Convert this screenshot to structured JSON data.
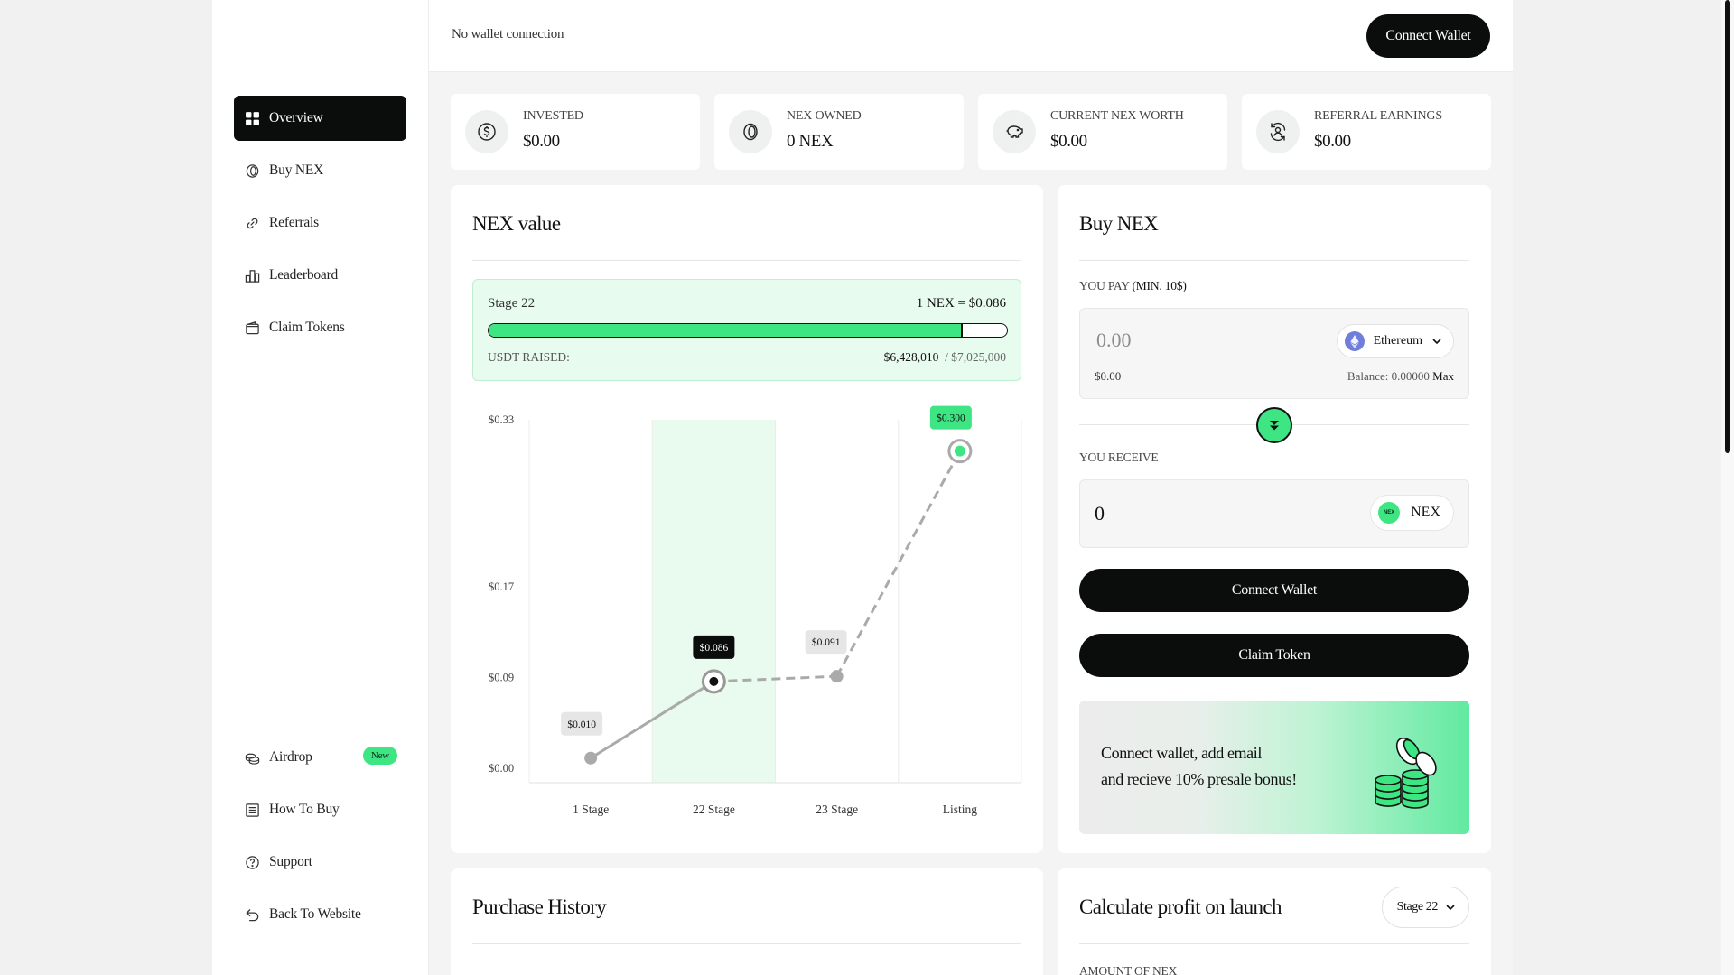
{
  "sidebar": {
    "top_items": [
      {
        "label": "Overview",
        "icon": "grid-icon"
      },
      {
        "label": "Buy NEX",
        "icon": "coin-icon"
      },
      {
        "label": "Referrals",
        "icon": "link-icon"
      },
      {
        "label": "Leaderboard",
        "icon": "podium-icon"
      },
      {
        "label": "Claim Tokens",
        "icon": "wallet-icon"
      }
    ],
    "bottom_items": [
      {
        "label": "Airdrop",
        "icon": "coins-stack-icon",
        "badge": "New"
      },
      {
        "label": "How To Buy",
        "icon": "document-icon"
      },
      {
        "label": "Support",
        "icon": "help-circle-icon"
      },
      {
        "label": "Back To Website",
        "icon": "return-arrow-icon"
      }
    ]
  },
  "topbar": {
    "status": "No wallet connection",
    "connect_label": "Connect Wallet"
  },
  "stats": [
    {
      "label": "INVESTED",
      "value": "$0.00",
      "icon": "dollar-circle-icon"
    },
    {
      "label": "NEX OWNED",
      "value": "0 NEX",
      "icon": "coin-icon"
    },
    {
      "label": "CURRENT NEX WORTH",
      "value": "$0.00",
      "icon": "piggy-bank-icon"
    },
    {
      "label": "REFERRAL EARNINGS",
      "value": "$0.00",
      "icon": "referral-cycle-icon"
    }
  ],
  "nex_value": {
    "title": "NEX value",
    "stage_label": "Stage 22",
    "rate": "1 NEX = $0.086",
    "progress_fraction": 0.915,
    "raised_label": "USDT RAISED:",
    "raised_value": "$6,428,010",
    "raised_target": "/ $7,025,000"
  },
  "chart_data": {
    "type": "line",
    "categories": [
      "1 Stage",
      "22 Stage",
      "23 Stage",
      "Listing"
    ],
    "values": [
      0.01,
      0.086,
      0.091,
      0.3
    ],
    "data_labels": [
      "$0.010",
      "$0.086",
      "$0.091",
      "$0.300"
    ],
    "y_tick_labels": [
      "$0.33",
      "$0.17",
      "$0.09",
      "$0.00"
    ],
    "y_tick_values": [
      0.33,
      0.17,
      0.09,
      0.0
    ],
    "ylim": [
      0,
      0.33
    ],
    "current_index": 1,
    "grid": "vertical",
    "colors": {
      "past": "#aaaaaa",
      "current": "#111111",
      "future": "#aaaaaa",
      "listing": "#3ee583",
      "highlight": "#e9fbef"
    }
  },
  "buy": {
    "title": "Buy NEX",
    "pay_label": "YOU PAY",
    "pay_min": "(MIN. 10$)",
    "pay_placeholder": "0.00",
    "pay_usd": "$0.00",
    "balance": "Balance: 0.00000",
    "max_label": "Max",
    "token": "Ethereum",
    "receive_label": "YOU RECEIVE",
    "receive_amount": "0",
    "receive_token": "NEX",
    "connect_label": "Connect Wallet",
    "claim_label": "Claim Token",
    "promo_line1": "Connect wallet, add email",
    "promo_line2": "and recieve 10% presale bonus!"
  },
  "purchase_history": {
    "title": "Purchase History"
  },
  "calc": {
    "title": "Calculate profit on launch",
    "stage_select": "Stage 22",
    "amount_label": "AMOUNT OF NEX"
  },
  "colors": {
    "accent": "#3ee583",
    "dark": "#0b0c0c",
    "mint_bg": "#e7fbee"
  }
}
